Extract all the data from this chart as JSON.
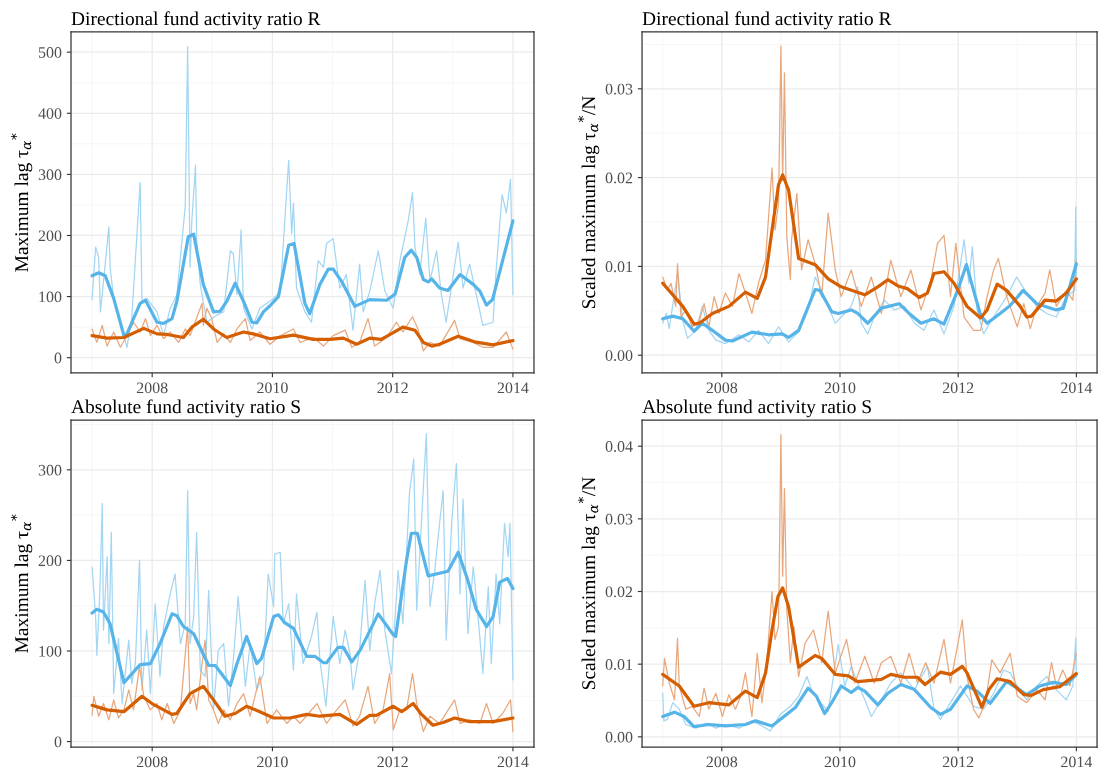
{
  "chart_data": [
    {
      "type": "line",
      "title": "Directional fund activity ratio R",
      "ylabel": "Maximum lag τ$_{α}$$^{*}$",
      "xlim": [
        2006.65,
        2014.35
      ],
      "xticks": [
        2008,
        2010,
        2012,
        2014
      ],
      "ylim": [
        -25,
        533
      ],
      "yticks": [
        0,
        100,
        200,
        300,
        400,
        500
      ],
      "grid": true,
      "series": [
        {
          "color": "#a3d6f3",
          "x": [
            2007.0,
            2007.06,
            2007.11,
            2007.14,
            2007.28,
            2007.3,
            2007.36,
            2007.5,
            2007.58,
            2007.66,
            2007.8,
            2007.83,
            2007.91,
            2008.08,
            2008.19,
            2008.3,
            2008.41,
            2008.55,
            2008.59,
            2008.63,
            2008.66,
            2008.72,
            2008.74,
            2008.8,
            2008.91,
            2009.08,
            2009.19,
            2009.3,
            2009.35,
            2009.41,
            2009.48,
            2009.52,
            2009.66,
            2009.79,
            2010.02,
            2010.13,
            2010.27,
            2010.32,
            2010.35,
            2010.4,
            2010.54,
            2010.65,
            2010.76,
            2010.85,
            2010.9,
            2011.01,
            2011.12,
            2011.23,
            2011.34,
            2011.45,
            2011.51,
            2011.62,
            2011.76,
            2011.87,
            2012.01,
            2012.12,
            2012.26,
            2012.33,
            2012.37,
            2012.45,
            2012.55,
            2012.62,
            2012.73,
            2012.81,
            2012.89,
            2013.09,
            2013.17,
            2013.28,
            2013.39,
            2013.5,
            2013.67,
            2013.72,
            2013.82,
            2013.89,
            2013.96,
            2014.0
          ],
          "values": [
            95,
            181,
            164,
            75,
            214,
            148,
            97,
            47,
            17,
            64,
            287,
            92,
            97,
            75,
            36,
            81,
            103,
            248,
            509,
            148,
            225,
            315,
            192,
            120,
            58,
            70,
            75,
            175,
            170,
            103,
            209,
            81,
            47,
            81,
            97,
            108,
            323,
            203,
            253,
            114,
            75,
            58,
            159,
            148,
            187,
            195,
            114,
            136,
            45,
            153,
            75,
            109,
            175,
            109,
            81,
            159,
            225,
            270,
            181,
            136,
            228,
            125,
            175,
            103,
            58,
            189,
            114,
            153,
            103,
            53,
            58,
            142,
            267,
            237,
            292,
            103
          ]
        },
        {
          "color": "#e9a77c",
          "x": [
            2007.0,
            2007.08,
            2007.17,
            2007.25,
            2007.36,
            2007.47,
            2007.58,
            2007.69,
            2007.8,
            2007.89,
            2007.97,
            2008.08,
            2008.19,
            2008.3,
            2008.44,
            2008.55,
            2008.63,
            2008.83,
            2008.85,
            2008.91,
            2008.99,
            2009.08,
            2009.19,
            2009.3,
            2009.41,
            2009.55,
            2009.63,
            2009.79,
            2009.96,
            2010.13,
            2010.35,
            2010.46,
            2010.68,
            2010.85,
            2011.01,
            2011.21,
            2011.32,
            2011.45,
            2011.59,
            2011.7,
            2011.9,
            2012.06,
            2012.17,
            2012.33,
            2012.42,
            2012.51,
            2012.62,
            2012.78,
            2013.03,
            2013.12,
            2013.34,
            2013.5,
            2013.67,
            2013.89,
            2014.0
          ],
          "values": [
            47,
            25,
            53,
            19,
            42,
            17,
            36,
            58,
            42,
            64,
            36,
            53,
            31,
            42,
            25,
            47,
            36,
            89,
            53,
            81,
            64,
            25,
            39,
            25,
            47,
            64,
            28,
            42,
            22,
            36,
            47,
            25,
            33,
            19,
            36,
            45,
            17,
            25,
            64,
            19,
            33,
            58,
            42,
            67,
            47,
            11,
            25,
            19,
            61,
            31,
            25,
            17,
            17,
            42,
            14
          ]
        },
        {
          "color": "#56b4e9",
          "x": [
            2007.0,
            2007.11,
            2007.22,
            2007.36,
            2007.53,
            2007.58,
            2007.8,
            2007.89,
            2008.08,
            2008.19,
            2008.33,
            2008.41,
            2008.6,
            2008.69,
            2008.85,
            2009.02,
            2009.13,
            2009.24,
            2009.38,
            2009.52,
            2009.66,
            2009.74,
            2009.85,
            2009.96,
            2010.1,
            2010.27,
            2010.36,
            2010.54,
            2010.62,
            2010.79,
            2010.93,
            2011.01,
            2011.15,
            2011.37,
            2011.62,
            2011.9,
            2012.04,
            2012.2,
            2012.31,
            2012.4,
            2012.51,
            2012.59,
            2012.65,
            2012.78,
            2012.92,
            2013.12,
            2013.34,
            2013.45,
            2013.56,
            2013.66,
            2014.0
          ],
          "values": [
            134,
            139,
            134,
            97,
            36,
            39,
            89,
            94,
            58,
            56,
            64,
            92,
            198,
            202,
            120,
            75,
            76,
            92,
            122,
            92,
            58,
            57,
            75,
            85,
            100,
            184,
            187,
            89,
            72,
            120,
            145,
            145,
            125,
            84,
            95,
            94,
            104,
            164,
            176,
            164,
            128,
            124,
            129,
            114,
            110,
            136,
            120,
            109,
            86,
            95,
            224
          ]
        },
        {
          "color": "#d55e00",
          "x": [
            2007.0,
            2007.25,
            2007.53,
            2007.86,
            2008.08,
            2008.25,
            2008.52,
            2008.66,
            2008.85,
            2009.02,
            2009.24,
            2009.52,
            2009.68,
            2009.96,
            2010.35,
            2010.68,
            2010.96,
            2011.18,
            2011.4,
            2011.62,
            2011.81,
            2012.01,
            2012.17,
            2012.37,
            2012.51,
            2012.65,
            2012.78,
            2013.09,
            2013.36,
            2013.67,
            2014.0
          ],
          "values": [
            36,
            32,
            33,
            48,
            39,
            38,
            33,
            50,
            63,
            47,
            33,
            42,
            39,
            31,
            37,
            30,
            30,
            32,
            22,
            32,
            30,
            41,
            50,
            45,
            25,
            19,
            22,
            35,
            26,
            21,
            28
          ]
        }
      ]
    },
    {
      "type": "line",
      "title": "Directional fund activity ratio R",
      "ylabel": "Scaled maximum lag τ$_{α}$$^{*}$/N",
      "xlim": [
        2006.65,
        2014.35
      ],
      "xticks": [
        2008,
        2010,
        2012,
        2014
      ],
      "ylim": [
        -0.002,
        0.0364
      ],
      "yticks": [
        {
          "value": 0,
          "label": "0.00"
        },
        {
          "value": 0.01,
          "label": "0.01"
        },
        {
          "value": 0.02,
          "label": "0.02"
        },
        {
          "value": 0.03,
          "label": "0.03"
        }
      ],
      "grid": true,
      "series": [
        {
          "color": "#a3d6f3",
          "x": [
            2007.0,
            2007.06,
            2007.11,
            2007.25,
            2007.34,
            2007.42,
            2007.56,
            2007.67,
            2007.78,
            2007.9,
            2008.06,
            2008.29,
            2008.46,
            2008.62,
            2008.79,
            2008.96,
            2009.13,
            2009.3,
            2009.46,
            2009.58,
            2009.69,
            2009.8,
            2009.92,
            2010.02,
            2010.19,
            2010.3,
            2010.36,
            2010.47,
            2010.58,
            2010.75,
            2010.92,
            2011.09,
            2011.26,
            2011.42,
            2011.59,
            2011.76,
            2011.93,
            2012.04,
            2012.1,
            2012.18,
            2012.24,
            2012.32,
            2012.43,
            2012.6,
            2012.82,
            2012.99,
            2013.16,
            2013.33,
            2013.5,
            2013.66,
            2013.83,
            2013.97,
            2013.99,
            2014.0
          ],
          "values": [
            0.0036,
            0.0047,
            0.003,
            0.0092,
            0.0039,
            0.0019,
            0.0028,
            0.0055,
            0.0028,
            0.0017,
            0.0013,
            0.0023,
            0.0015,
            0.0028,
            0.0013,
            0.0032,
            0.0015,
            0.0026,
            0.0051,
            0.0088,
            0.0073,
            0.0055,
            0.0036,
            0.0043,
            0.0055,
            0.0077,
            0.0036,
            0.0024,
            0.0043,
            0.0062,
            0.0051,
            0.0055,
            0.0036,
            0.0028,
            0.0051,
            0.0024,
            0.0055,
            0.0103,
            0.013,
            0.0081,
            0.0122,
            0.0051,
            0.0024,
            0.0043,
            0.0066,
            0.0088,
            0.007,
            0.0055,
            0.0047,
            0.0043,
            0.0066,
            0.0073,
            0.0167,
            0.0088
          ]
        },
        {
          "color": "#e9a77c",
          "x": [
            2007.0,
            2007.08,
            2007.14,
            2007.22,
            2007.25,
            2007.31,
            2007.39,
            2007.5,
            2007.62,
            2007.7,
            2007.78,
            2007.87,
            2007.95,
            2008.06,
            2008.18,
            2008.29,
            2008.4,
            2008.51,
            2008.62,
            2008.74,
            2008.85,
            2008.9,
            2008.96,
            2009.0,
            2009.03,
            2009.06,
            2009.1,
            2009.16,
            2009.18,
            2009.27,
            2009.35,
            2009.46,
            2009.58,
            2009.69,
            2009.8,
            2009.92,
            2010.02,
            2010.19,
            2010.36,
            2010.53,
            2010.7,
            2010.86,
            2011.03,
            2011.2,
            2011.37,
            2011.54,
            2011.65,
            2011.76,
            2011.87,
            2011.96,
            2012.1,
            2012.26,
            2012.38,
            2012.49,
            2012.6,
            2012.68,
            2012.82,
            2013.0,
            2013.11,
            2013.22,
            2013.33,
            2013.47,
            2013.55,
            2013.66,
            2013.83,
            2013.94,
            2014.0
          ],
          "values": [
            0.0088,
            0.0073,
            0.0081,
            0.0055,
            0.0103,
            0.0043,
            0.0051,
            0.0032,
            0.0039,
            0.0058,
            0.0032,
            0.0066,
            0.0047,
            0.007,
            0.0055,
            0.0092,
            0.007,
            0.0047,
            0.0081,
            0.0107,
            0.0211,
            0.0141,
            0.0171,
            0.0348,
            0.0197,
            0.0318,
            0.0133,
            0.0085,
            0.013,
            0.0182,
            0.0096,
            0.013,
            0.0103,
            0.0066,
            0.016,
            0.0096,
            0.0066,
            0.0096,
            0.0055,
            0.0088,
            0.0047,
            0.0107,
            0.0066,
            0.0096,
            0.0051,
            0.0085,
            0.0126,
            0.0135,
            0.0066,
            0.0126,
            0.0043,
            0.0028,
            0.0028,
            0.0066,
            0.0096,
            0.0109,
            0.0066,
            0.0032,
            0.0058,
            0.003,
            0.0055,
            0.007,
            0.0096,
            0.0055,
            0.0073,
            0.0062,
            0.0107
          ]
        },
        {
          "color": "#56b4e9",
          "x": [
            2007.0,
            2007.17,
            2007.34,
            2007.53,
            2007.67,
            2007.84,
            2008.06,
            2008.18,
            2008.51,
            2008.79,
            2009.02,
            2009.13,
            2009.3,
            2009.58,
            2009.66,
            2009.86,
            2009.97,
            2010.19,
            2010.3,
            2010.47,
            2010.7,
            2011.0,
            2011.17,
            2011.37,
            2011.59,
            2011.76,
            2011.98,
            2012.14,
            2012.26,
            2012.38,
            2012.49,
            2012.71,
            2012.88,
            2013.1,
            2013.33,
            2013.66,
            2013.78,
            2014.0
          ],
          "values": [
            0.0041,
            0.0044,
            0.0041,
            0.0027,
            0.0036,
            0.0028,
            0.0017,
            0.0016,
            0.0026,
            0.0023,
            0.0024,
            0.002,
            0.0028,
            0.0074,
            0.0073,
            0.0049,
            0.0047,
            0.0051,
            0.0047,
            0.0036,
            0.0053,
            0.0058,
            0.0047,
            0.0036,
            0.0041,
            0.0035,
            0.0071,
            0.0102,
            0.0073,
            0.0045,
            0.0036,
            0.0047,
            0.0056,
            0.0073,
            0.0058,
            0.0051,
            0.0053,
            0.0103
          ]
        },
        {
          "color": "#d55e00",
          "x": [
            2007.0,
            2007.34,
            2007.53,
            2007.62,
            2007.84,
            2008.12,
            2008.4,
            2008.6,
            2008.74,
            2008.85,
            2008.96,
            2009.03,
            2009.13,
            2009.3,
            2009.58,
            2009.8,
            2010.02,
            2010.42,
            2010.64,
            2010.81,
            2010.98,
            2011.14,
            2011.34,
            2011.48,
            2011.59,
            2011.76,
            2011.93,
            2012.15,
            2012.38,
            2012.49,
            2012.66,
            2012.82,
            2013.05,
            2013.16,
            2013.24,
            2013.47,
            2013.66,
            2013.83,
            2014.0
          ],
          "values": [
            0.0081,
            0.0055,
            0.0035,
            0.0036,
            0.0047,
            0.0055,
            0.0071,
            0.0064,
            0.0088,
            0.0141,
            0.0192,
            0.0203,
            0.0186,
            0.0109,
            0.0102,
            0.0086,
            0.0077,
            0.0068,
            0.0077,
            0.0085,
            0.0078,
            0.0075,
            0.0065,
            0.007,
            0.0092,
            0.0094,
            0.0081,
            0.0055,
            0.0042,
            0.0051,
            0.008,
            0.0073,
            0.0055,
            0.0043,
            0.0044,
            0.0062,
            0.0061,
            0.007,
            0.0086
          ]
        }
      ]
    },
    {
      "type": "line",
      "title": "Absolute fund activity ratio S",
      "ylabel": "Maximum lag τ$_{α}$$^{*}$",
      "xlim": [
        2006.65,
        2014.35
      ],
      "xticks": [
        2008,
        2010,
        2012,
        2014
      ],
      "ylim": [
        -6,
        355
      ],
      "yticks": [
        0,
        100,
        200,
        300
      ],
      "grid": true,
      "series": [
        {
          "color": "#a3d6f3",
          "x": [
            2007.0,
            2007.06,
            2007.08,
            2007.13,
            2007.17,
            2007.19,
            2007.25,
            2007.28,
            2007.32,
            2007.36,
            2007.44,
            2007.5,
            2007.61,
            2007.66,
            2007.72,
            2007.79,
            2007.83,
            2007.91,
            2007.97,
            2008.05,
            2008.13,
            2008.19,
            2008.3,
            2008.38,
            2008.47,
            2008.55,
            2008.59,
            2008.63,
            2008.69,
            2008.74,
            2008.8,
            2008.88,
            2008.94,
            2009.02,
            2009.1,
            2009.19,
            2009.27,
            2009.35,
            2009.43,
            2009.49,
            2009.55,
            2009.63,
            2009.74,
            2009.85,
            2009.93,
            2010.02,
            2010.04,
            2010.13,
            2010.18,
            2010.27,
            2010.35,
            2010.4,
            2010.51,
            2010.65,
            2010.74,
            2010.79,
            2010.89,
            2011.01,
            2011.12,
            2011.21,
            2011.29,
            2011.34,
            2011.45,
            2011.54,
            2011.62,
            2011.7,
            2011.79,
            2011.87,
            2011.98,
            2012.09,
            2012.17,
            2012.28,
            2012.35,
            2012.4,
            2012.48,
            2012.56,
            2012.62,
            2012.7,
            2012.78,
            2012.84,
            2012.89,
            2012.98,
            2013.06,
            2013.12,
            2013.17,
            2013.25,
            2013.34,
            2013.42,
            2013.5,
            2013.59,
            2013.64,
            2013.72,
            2013.78,
            2013.86,
            2013.92,
            2013.95,
            2014.0
          ],
          "values": [
            193,
            138,
            95,
            165,
            263,
            123,
            204,
            108,
            231,
            53,
            114,
            42,
            112,
            64,
            86,
            200,
            57,
            123,
            53,
            152,
            72,
            127,
            163,
            185,
            108,
            130,
            277,
            108,
            138,
            231,
            79,
            72,
            167,
            35,
            101,
            108,
            39,
            90,
            160,
            112,
            61,
            108,
            57,
            75,
            185,
            149,
            207,
            209,
            130,
            152,
            79,
            163,
            86,
            116,
            143,
            90,
            39,
            138,
            86,
            123,
            97,
            57,
            101,
            178,
            101,
            152,
            189,
            123,
            75,
            189,
            130,
            275,
            312,
            145,
            244,
            340,
            149,
            189,
            241,
            277,
            112,
            241,
            307,
            163,
            268,
            119,
            193,
            138,
            75,
            171,
            86,
            185,
            130,
            241,
            204,
            241,
            68
          ]
        },
        {
          "color": "#e9a77c",
          "x": [
            2007.0,
            2007.03,
            2007.11,
            2007.19,
            2007.28,
            2007.36,
            2007.44,
            2007.53,
            2007.61,
            2007.69,
            2007.79,
            2007.86,
            2007.97,
            2008.08,
            2008.16,
            2008.25,
            2008.36,
            2008.47,
            2008.59,
            2008.63,
            2008.69,
            2008.74,
            2008.83,
            2008.88,
            2008.94,
            2009.02,
            2009.1,
            2009.19,
            2009.3,
            2009.41,
            2009.52,
            2009.63,
            2009.79,
            2009.91,
            2010.07,
            2010.24,
            2010.35,
            2010.46,
            2010.6,
            2010.74,
            2010.9,
            2011.07,
            2011.21,
            2011.34,
            2011.45,
            2011.59,
            2011.7,
            2011.84,
            2011.95,
            2012.01,
            2012.12,
            2012.23,
            2012.33,
            2012.4,
            2012.51,
            2012.62,
            2012.78,
            2013.03,
            2013.12,
            2013.28,
            2013.45,
            2013.56,
            2013.67,
            2013.83,
            2013.96,
            2014.0
          ],
          "values": [
            29,
            50,
            28,
            42,
            24,
            46,
            26,
            35,
            57,
            35,
            83,
            50,
            35,
            42,
            24,
            42,
            20,
            35,
            127,
            42,
            53,
            35,
            86,
            112,
            46,
            35,
            20,
            35,
            24,
            42,
            53,
            28,
            72,
            20,
            35,
            20,
            28,
            20,
            31,
            42,
            20,
            35,
            46,
            17,
            28,
            61,
            20,
            35,
            75,
            13,
            35,
            35,
            75,
            42,
            11,
            28,
            20,
            46,
            20,
            24,
            20,
            42,
            20,
            31,
            46,
            11
          ]
        },
        {
          "color": "#56b4e9",
          "x": [
            2007.0,
            2007.08,
            2007.19,
            2007.3,
            2007.53,
            2007.8,
            2007.97,
            2008.13,
            2008.33,
            2008.41,
            2008.52,
            2008.69,
            2008.94,
            2009.05,
            2009.3,
            2009.41,
            2009.57,
            2009.74,
            2009.82,
            2010.02,
            2010.1,
            2010.21,
            2010.35,
            2010.57,
            2010.71,
            2010.85,
            2010.9,
            2011.09,
            2011.18,
            2011.32,
            2011.46,
            2011.76,
            2012.01,
            2012.05,
            2012.12,
            2012.23,
            2012.31,
            2012.41,
            2012.59,
            2012.92,
            2013.09,
            2013.25,
            2013.39,
            2013.56,
            2013.67,
            2013.78,
            2013.91,
            2014.0
          ],
          "values": [
            142,
            146,
            143,
            130,
            65,
            85,
            86,
            108,
            141,
            139,
            127,
            119,
            84,
            84,
            62,
            86,
            116,
            86,
            92,
            138,
            140,
            131,
            125,
            94,
            94,
            87,
            87,
            104,
            104,
            88,
            101,
            141,
            118,
            116,
            149,
            200,
            230,
            230,
            183,
            188,
            209,
            178,
            146,
            127,
            138,
            176,
            180,
            169
          ]
        },
        {
          "color": "#d55e00",
          "x": [
            2007.0,
            2007.25,
            2007.53,
            2007.83,
            2008.02,
            2008.33,
            2008.41,
            2008.63,
            2008.85,
            2009.02,
            2009.21,
            2009.38,
            2009.57,
            2009.79,
            2010.02,
            2010.29,
            2010.57,
            2010.79,
            2011.12,
            2011.4,
            2011.62,
            2011.73,
            2012.01,
            2012.15,
            2012.34,
            2012.48,
            2012.67,
            2012.84,
            2013.03,
            2013.28,
            2013.67,
            2014.0
          ],
          "values": [
            40,
            35,
            33,
            50,
            41,
            30,
            31,
            53,
            61,
            46,
            28,
            31,
            39,
            33,
            26,
            26,
            30,
            28,
            30,
            19,
            29,
            29,
            39,
            33,
            42,
            30,
            18,
            21,
            26,
            22,
            22,
            26
          ]
        }
      ]
    },
    {
      "type": "line",
      "title": "Absolute fund activity ratio S",
      "ylabel": "Scaled maximum lag τ$_{α}$$^{*}$/N",
      "xlim": [
        2006.65,
        2014.35
      ],
      "xticks": [
        2008,
        2010,
        2012,
        2014
      ],
      "ylim": [
        -0.0014,
        0.0436
      ],
      "yticks": [
        {
          "value": 0,
          "label": "0.00"
        },
        {
          "value": 0.01,
          "label": "0.01"
        },
        {
          "value": 0.02,
          "label": "0.02"
        },
        {
          "value": 0.03,
          "label": "0.03"
        },
        {
          "value": 0.04,
          "label": "0.04"
        }
      ],
      "grid": true,
      "series": [
        {
          "color": "#a3d6f3",
          "x": [
            2007.0,
            2007.02,
            2007.08,
            2007.17,
            2007.28,
            2007.39,
            2007.56,
            2007.73,
            2007.9,
            2008.06,
            2008.29,
            2008.51,
            2008.68,
            2008.82,
            2008.99,
            2009.16,
            2009.3,
            2009.44,
            2009.52,
            2009.63,
            2009.8,
            2009.97,
            2010.08,
            2010.19,
            2010.3,
            2010.42,
            2010.53,
            2010.7,
            2010.86,
            2011.03,
            2011.26,
            2011.48,
            2011.59,
            2011.7,
            2011.87,
            2012.04,
            2012.15,
            2012.26,
            2012.43,
            2012.6,
            2012.77,
            2012.88,
            2013.0,
            2013.16,
            2013.33,
            2013.5,
            2013.66,
            2013.83,
            2013.94,
            2013.99,
            2014.0
          ],
          "values": [
            0.006,
            0.0022,
            0.0024,
            0.0047,
            0.0038,
            0.0017,
            0.0012,
            0.0019,
            0.0012,
            0.0017,
            0.0012,
            0.0022,
            0.0015,
            0.0008,
            0.0031,
            0.0042,
            0.0056,
            0.0083,
            0.0065,
            0.0051,
            0.0035,
            0.0127,
            0.007,
            0.0097,
            0.0074,
            0.0051,
            0.0028,
            0.0051,
            0.0074,
            0.0088,
            0.0065,
            0.0097,
            0.0038,
            0.0024,
            0.0047,
            0.007,
            0.0056,
            0.0042,
            0.0038,
            0.006,
            0.0092,
            0.0088,
            0.007,
            0.0051,
            0.007,
            0.0083,
            0.0065,
            0.0051,
            0.007,
            0.0136,
            0.0083
          ]
        },
        {
          "color": "#e9a77c",
          "x": [
            2007.0,
            2007.03,
            2007.11,
            2007.2,
            2007.25,
            2007.28,
            2007.39,
            2007.5,
            2007.62,
            2007.7,
            2007.78,
            2007.9,
            2008.01,
            2008.12,
            2008.23,
            2008.32,
            2008.4,
            2008.51,
            2008.6,
            2008.68,
            2008.76,
            2008.85,
            2008.9,
            2008.96,
            2009.0,
            2009.03,
            2009.06,
            2009.1,
            2009.16,
            2009.22,
            2009.3,
            2009.41,
            2009.55,
            2009.69,
            2009.8,
            2009.92,
            2010.11,
            2010.25,
            2010.42,
            2010.58,
            2010.7,
            2010.86,
            2011.03,
            2011.17,
            2011.31,
            2011.45,
            2011.59,
            2011.76,
            2011.87,
            2012.07,
            2012.15,
            2012.26,
            2012.35,
            2012.46,
            2012.57,
            2012.71,
            2012.88,
            2013.0,
            2013.16,
            2013.33,
            2013.47,
            2013.58,
            2013.66,
            2013.77,
            2013.89,
            2014.0
          ],
          "values": [
            0.007,
            0.0108,
            0.0074,
            0.0051,
            0.0136,
            0.007,
            0.0038,
            0.0042,
            0.0028,
            0.0067,
            0.0038,
            0.006,
            0.0028,
            0.0058,
            0.0038,
            0.0056,
            0.0088,
            0.0028,
            0.0115,
            0.0047,
            0.0102,
            0.02,
            0.0134,
            0.0152,
            0.0416,
            0.0221,
            0.0342,
            0.0175,
            0.0102,
            0.0152,
            0.0083,
            0.0129,
            0.0147,
            0.0102,
            0.0173,
            0.0088,
            0.0134,
            0.0074,
            0.0111,
            0.0074,
            0.0102,
            0.0111,
            0.0074,
            0.0115,
            0.0074,
            0.0102,
            0.0074,
            0.0134,
            0.0074,
            0.0161,
            0.0083,
            0.0038,
            0.0026,
            0.0047,
            0.0106,
            0.0088,
            0.0115,
            0.0056,
            0.0047,
            0.0065,
            0.0051,
            0.0102,
            0.007,
            0.0092,
            0.007,
            0.0115
          ]
        },
        {
          "color": "#56b4e9",
          "x": [
            2007.0,
            2007.2,
            2007.36,
            2007.53,
            2007.78,
            2008.06,
            2008.4,
            2008.57,
            2008.85,
            2009.02,
            2009.24,
            2009.46,
            2009.6,
            2009.74,
            2009.86,
            2010.02,
            2010.19,
            2010.3,
            2010.42,
            2010.64,
            2010.81,
            2011.03,
            2011.26,
            2011.54,
            2011.7,
            2011.87,
            2012.15,
            2012.32,
            2012.54,
            2012.82,
            2013.0,
            2013.16,
            2013.38,
            2013.61,
            2013.83,
            2014.0
          ],
          "values": [
            0.0028,
            0.0034,
            0.0028,
            0.0014,
            0.0017,
            0.0015,
            0.0017,
            0.0022,
            0.0015,
            0.0026,
            0.004,
            0.0067,
            0.0056,
            0.0032,
            0.0047,
            0.007,
            0.0061,
            0.0068,
            0.0063,
            0.0044,
            0.006,
            0.0072,
            0.0065,
            0.004,
            0.0031,
            0.0038,
            0.007,
            0.0063,
            0.0046,
            0.0076,
            0.0067,
            0.0058,
            0.007,
            0.0075,
            0.0072,
            0.0086
          ]
        },
        {
          "color": "#d55e00",
          "x": [
            2007.0,
            2007.28,
            2007.53,
            2007.78,
            2008.12,
            2008.4,
            2008.6,
            2008.74,
            2008.85,
            2008.95,
            2009.03,
            2009.13,
            2009.3,
            2009.58,
            2009.69,
            2009.92,
            2010.14,
            2010.3,
            2010.7,
            2010.86,
            2011.09,
            2011.31,
            2011.44,
            2011.7,
            2011.87,
            2012.07,
            2012.15,
            2012.4,
            2012.52,
            2012.66,
            2012.88,
            2013.11,
            2013.24,
            2013.44,
            2013.72,
            2014.0
          ],
          "values": [
            0.0086,
            0.007,
            0.0042,
            0.0047,
            0.0044,
            0.0063,
            0.0054,
            0.0088,
            0.0147,
            0.0193,
            0.0205,
            0.0179,
            0.0096,
            0.0112,
            0.0108,
            0.0086,
            0.0084,
            0.0076,
            0.0079,
            0.0086,
            0.0082,
            0.0082,
            0.0072,
            0.0089,
            0.0086,
            0.0097,
            0.0088,
            0.0041,
            0.0065,
            0.008,
            0.0076,
            0.0058,
            0.0057,
            0.0065,
            0.0069,
            0.0087
          ]
        }
      ]
    }
  ]
}
